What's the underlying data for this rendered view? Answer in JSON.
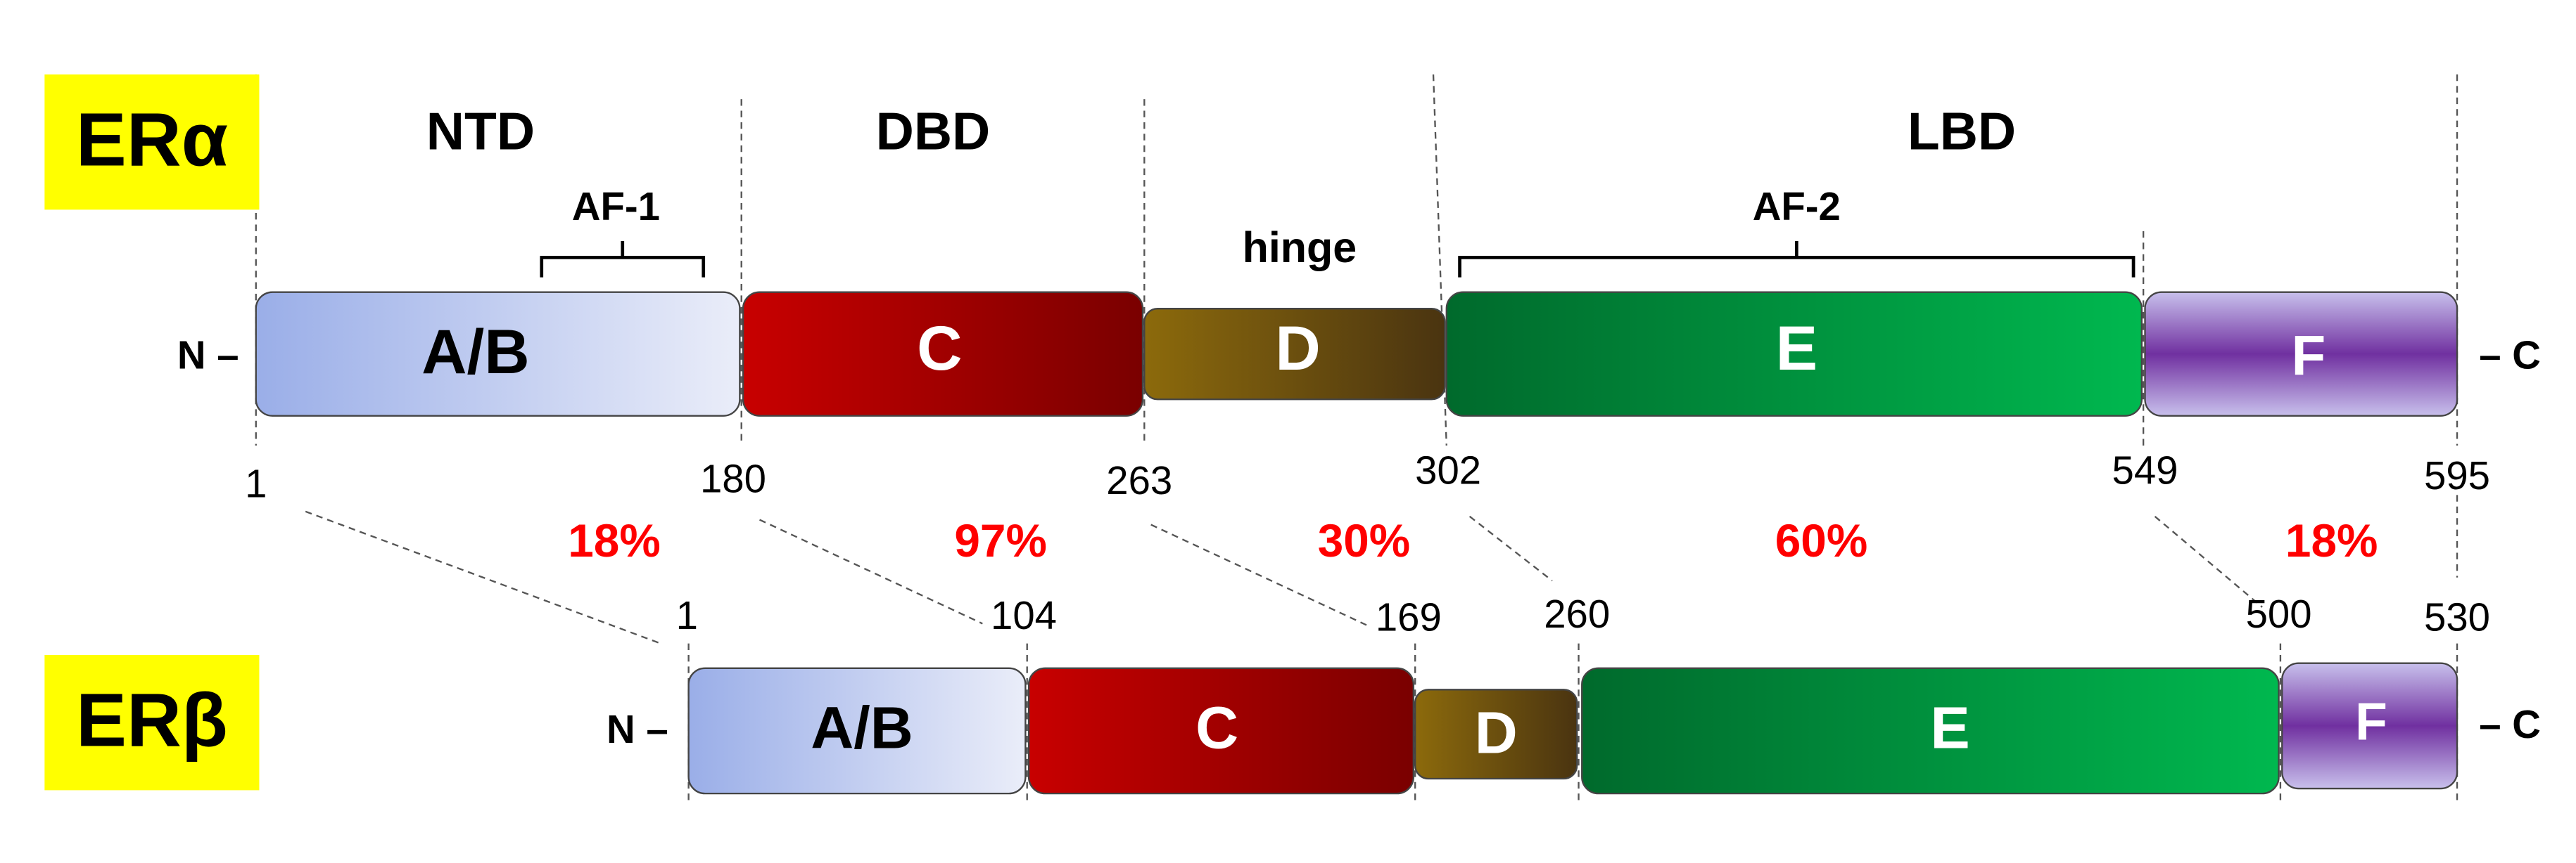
{
  "alpha": {
    "label": "ERα",
    "regions": [
      "NTD",
      "DBD",
      "hinge",
      "LBD"
    ],
    "af1": "AF-1",
    "af2": "AF-2",
    "n_term": "N –",
    "c_term": "– C",
    "domains": [
      "A/B",
      "C",
      "D",
      "E",
      "F"
    ],
    "positions": [
      "1",
      "180",
      "263",
      "302",
      "549",
      "595"
    ]
  },
  "identity": [
    "18%",
    "97%",
    "30%",
    "60%",
    "18%"
  ],
  "beta": {
    "label": "ERβ",
    "n_term": "N –",
    "c_term": "– C",
    "domains": [
      "A/B",
      "C",
      "D",
      "E",
      "F"
    ],
    "positions": [
      "1",
      "104",
      "169",
      "260",
      "500",
      "530"
    ]
  }
}
